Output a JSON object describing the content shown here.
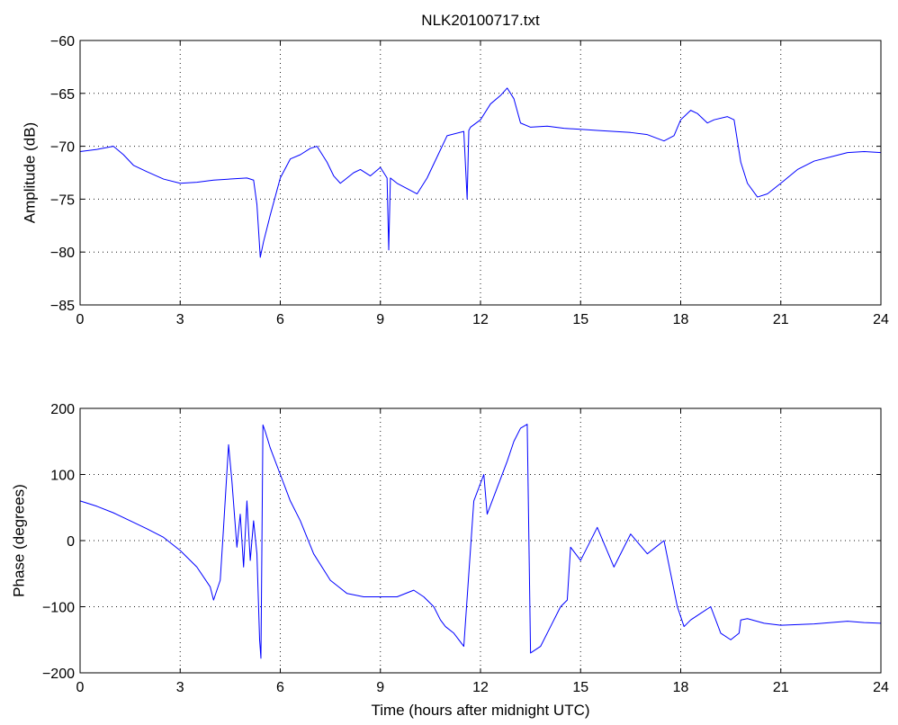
{
  "figure": {
    "title": "NLK20100717.txt"
  },
  "chart_data": [
    {
      "type": "line",
      "ylabel": "Amplitude (dB)",
      "xlabel": "",
      "xlim": [
        0,
        24
      ],
      "ylim": [
        -85,
        -60
      ],
      "xticks": [
        0,
        3,
        6,
        9,
        12,
        15,
        18,
        21,
        24
      ],
      "yticks": [
        -85,
        -80,
        -75,
        -70,
        -65,
        -60
      ],
      "xtick_labels": [
        "0",
        "3",
        "6",
        "9",
        "12",
        "15",
        "18",
        "21",
        "24"
      ],
      "ytick_labels": [
        "−85",
        "−80",
        "−75",
        "−70",
        "−65",
        "−60"
      ],
      "grid": true,
      "series": [
        {
          "color": "#0000ff",
          "x": [
            0.0,
            0.5,
            1.0,
            1.3,
            1.6,
            2.0,
            2.5,
            3.0,
            3.5,
            4.0,
            4.5,
            5.0,
            5.2,
            5.3,
            5.4,
            5.5,
            5.7,
            6.0,
            6.3,
            6.6,
            6.9,
            7.1,
            7.4,
            7.6,
            7.8,
            8.0,
            8.2,
            8.4,
            8.7,
            9.0,
            9.2,
            9.25,
            9.3,
            9.5,
            9.8,
            10.1,
            10.4,
            10.7,
            11.0,
            11.5,
            11.6,
            11.65,
            11.7,
            12.0,
            12.3,
            12.6,
            12.8,
            13.0,
            13.2,
            13.5,
            14.0,
            14.5,
            15.0,
            15.5,
            16.0,
            16.5,
            17.0,
            17.5,
            17.8,
            18.0,
            18.3,
            18.5,
            18.8,
            19.0,
            19.4,
            19.6,
            19.8,
            20.0,
            20.3,
            20.6,
            21.0,
            21.5,
            22.0,
            22.5,
            23.0,
            23.5,
            24.0
          ],
          "y": [
            -70.5,
            -70.3,
            -70.0,
            -70.8,
            -71.8,
            -72.4,
            -73.1,
            -73.5,
            -73.4,
            -73.2,
            -73.1,
            -73.0,
            -73.2,
            -75.5,
            -80.5,
            -79.0,
            -76.5,
            -73.0,
            -71.2,
            -70.8,
            -70.2,
            -70.0,
            -71.5,
            -72.8,
            -73.5,
            -73.0,
            -72.5,
            -72.2,
            -72.8,
            -72.0,
            -73.0,
            -79.8,
            -73.0,
            -73.5,
            -74.0,
            -74.5,
            -73.0,
            -71.0,
            -69.0,
            -68.6,
            -75.0,
            -68.5,
            -68.2,
            -67.5,
            -66.0,
            -65.2,
            -64.5,
            -65.5,
            -67.8,
            -68.2,
            -68.1,
            -68.3,
            -68.4,
            -68.5,
            -68.6,
            -68.7,
            -68.9,
            -69.5,
            -69.0,
            -67.5,
            -66.6,
            -66.9,
            -67.8,
            -67.5,
            -67.2,
            -67.5,
            -71.5,
            -73.5,
            -74.8,
            -74.5,
            -73.5,
            -72.2,
            -71.4,
            -71.0,
            -70.6,
            -70.5,
            -70.6
          ]
        }
      ]
    },
    {
      "type": "line",
      "ylabel": "Phase (degrees)",
      "xlabel": "Time (hours after midnight UTC)",
      "xlim": [
        0,
        24
      ],
      "ylim": [
        -200,
        200
      ],
      "xticks": [
        0,
        3,
        6,
        9,
        12,
        15,
        18,
        21,
        24
      ],
      "yticks": [
        -200,
        -100,
        0,
        100,
        200
      ],
      "xtick_labels": [
        "0",
        "3",
        "6",
        "9",
        "12",
        "15",
        "18",
        "21",
        "24"
      ],
      "ytick_labels": [
        "−200",
        "−100",
        "0",
        "100",
        "200"
      ],
      "grid": true,
      "series": [
        {
          "color": "#0000ff",
          "x": [
            0.0,
            0.5,
            1.0,
            1.5,
            2.0,
            2.5,
            3.0,
            3.5,
            3.9,
            4.0,
            4.2,
            4.3,
            4.45,
            4.55,
            4.7,
            4.8,
            4.9,
            5.0,
            5.1,
            5.2,
            5.3,
            5.38,
            5.42,
            5.48,
            5.55,
            5.7,
            6.0,
            6.3,
            6.6,
            7.0,
            7.5,
            8.0,
            8.5,
            9.0,
            9.5,
            10.0,
            10.3,
            10.6,
            10.8,
            10.95,
            11.2,
            11.5,
            11.8,
            12.1,
            12.2,
            12.5,
            12.8,
            13.0,
            13.2,
            13.4,
            13.5,
            13.8,
            14.1,
            14.4,
            14.6,
            14.7,
            15.0,
            15.5,
            16.0,
            16.5,
            17.0,
            17.5,
            17.9,
            18.1,
            18.3,
            18.6,
            18.9,
            19.2,
            19.5,
            19.75,
            19.8,
            20.0,
            20.5,
            21.0,
            21.5,
            22.0,
            22.5,
            23.0,
            23.5,
            24.0
          ],
          "y": [
            60,
            52,
            42,
            30,
            18,
            5,
            -15,
            -40,
            -70,
            -90,
            -60,
            20,
            145,
            90,
            -10,
            40,
            -40,
            60,
            -30,
            30,
            -20,
            -150,
            -178,
            175,
            165,
            140,
            100,
            60,
            30,
            -20,
            -60,
            -80,
            -85,
            -85,
            -85,
            -75,
            -85,
            -100,
            -120,
            -130,
            -140,
            -160,
            60,
            100,
            40,
            80,
            120,
            150,
            170,
            176,
            -170,
            -160,
            -130,
            -100,
            -90,
            -10,
            -30,
            20,
            -40,
            10,
            -20,
            0,
            -100,
            -130,
            -120,
            -110,
            -100,
            -140,
            -150,
            -140,
            -120,
            -118,
            -125,
            -128,
            -127,
            -126,
            -124,
            -122,
            -124,
            -125
          ]
        }
      ]
    }
  ]
}
